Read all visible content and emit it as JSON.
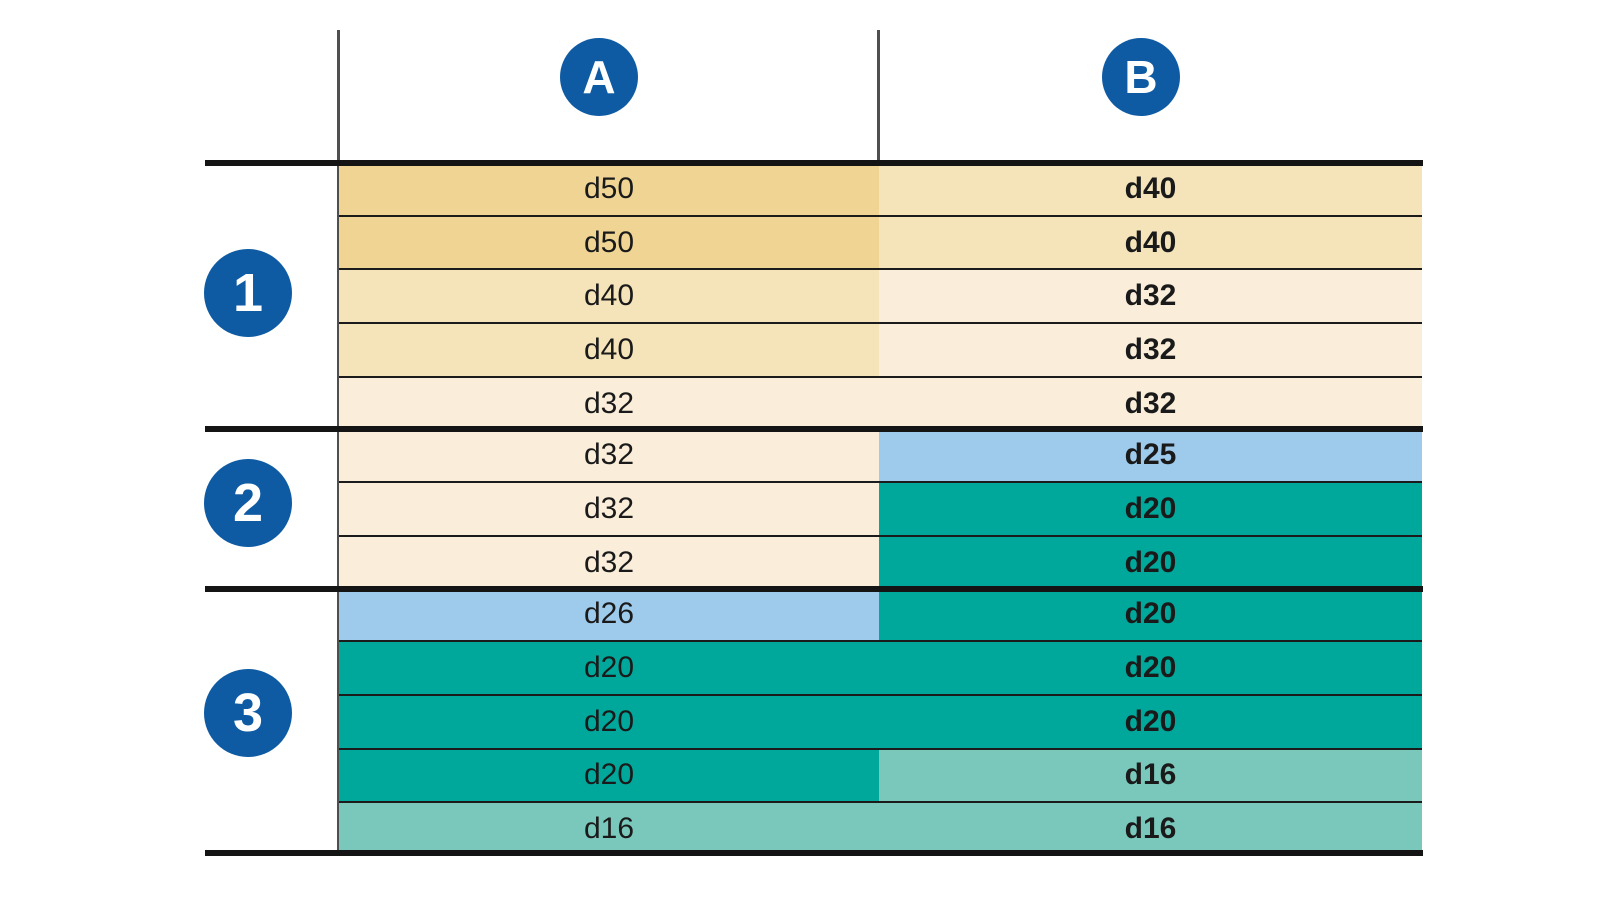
{
  "columns": [
    {
      "label": "A"
    },
    {
      "label": "B"
    }
  ],
  "groups": [
    {
      "label": "1",
      "row_count": 5
    },
    {
      "label": "2",
      "row_count": 3
    },
    {
      "label": "3",
      "row_count": 5
    }
  ],
  "table": {
    "rows": [
      {
        "a": {
          "value": "d50",
          "color": "tan_dark"
        },
        "b": {
          "value": "d40",
          "color": "tan_mid"
        }
      },
      {
        "a": {
          "value": "d50",
          "color": "tan_dark"
        },
        "b": {
          "value": "d40",
          "color": "tan_mid"
        }
      },
      {
        "a": {
          "value": "d40",
          "color": "tan_mid"
        },
        "b": {
          "value": "d32",
          "color": "cream"
        }
      },
      {
        "a": {
          "value": "d40",
          "color": "tan_mid"
        },
        "b": {
          "value": "d32",
          "color": "cream"
        }
      },
      {
        "a": {
          "value": "d32",
          "color": "cream"
        },
        "b": {
          "value": "d32",
          "color": "cream"
        }
      },
      {
        "a": {
          "value": "d32",
          "color": "cream"
        },
        "b": {
          "value": "d25",
          "color": "blue"
        }
      },
      {
        "a": {
          "value": "d32",
          "color": "cream"
        },
        "b": {
          "value": "d20",
          "color": "teal"
        }
      },
      {
        "a": {
          "value": "d32",
          "color": "cream"
        },
        "b": {
          "value": "d20",
          "color": "teal"
        }
      },
      {
        "a": {
          "value": "d26",
          "color": "blue"
        },
        "b": {
          "value": "d20",
          "color": "teal"
        }
      },
      {
        "a": {
          "value": "d20",
          "color": "teal"
        },
        "b": {
          "value": "d20",
          "color": "teal"
        }
      },
      {
        "a": {
          "value": "d20",
          "color": "teal"
        },
        "b": {
          "value": "d20",
          "color": "teal"
        }
      },
      {
        "a": {
          "value": "d20",
          "color": "teal"
        },
        "b": {
          "value": "d16",
          "color": "teal_light"
        }
      },
      {
        "a": {
          "value": "d16",
          "color": "teal_light"
        },
        "b": {
          "value": "d16",
          "color": "teal_light"
        }
      }
    ]
  },
  "palette": {
    "tan_dark": "#efd494",
    "tan_mid": "#f5e4ba",
    "cream": "#faeeda",
    "blue": "#9ecaec",
    "teal": "#00a79b",
    "teal_light": "#79c8bb",
    "badge_blue": "#0e5ba3",
    "line_dark": "#141414",
    "text": "#1a1a1a"
  }
}
